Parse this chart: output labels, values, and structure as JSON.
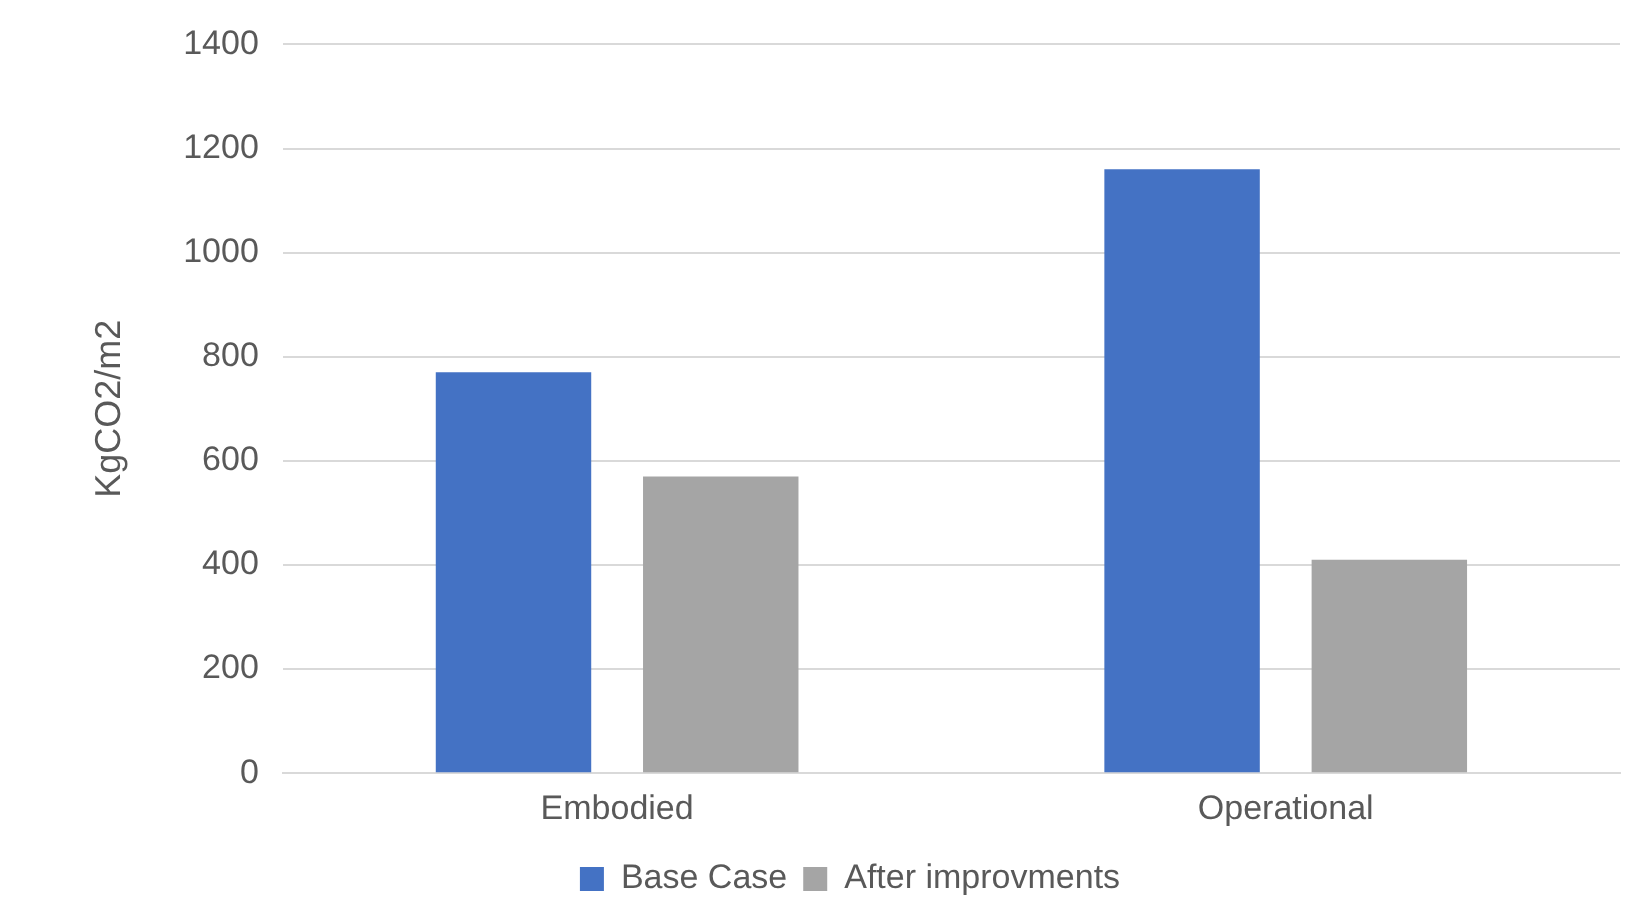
{
  "chart_data": {
    "type": "bar",
    "ylabel": "KgCO2/m2",
    "categories": [
      "Embodied",
      "Operational"
    ],
    "series": [
      {
        "name": "Base Case",
        "color": "#4472c4",
        "values": [
          770,
          1160
        ]
      },
      {
        "name": "After improvments",
        "color": "#a5a5a5",
        "values": [
          570,
          410
        ]
      }
    ],
    "ylim": [
      0,
      1400
    ],
    "yticks": [
      0,
      200,
      400,
      600,
      800,
      1000,
      1200,
      1400
    ],
    "grid": "y",
    "legend": "bottom"
  }
}
